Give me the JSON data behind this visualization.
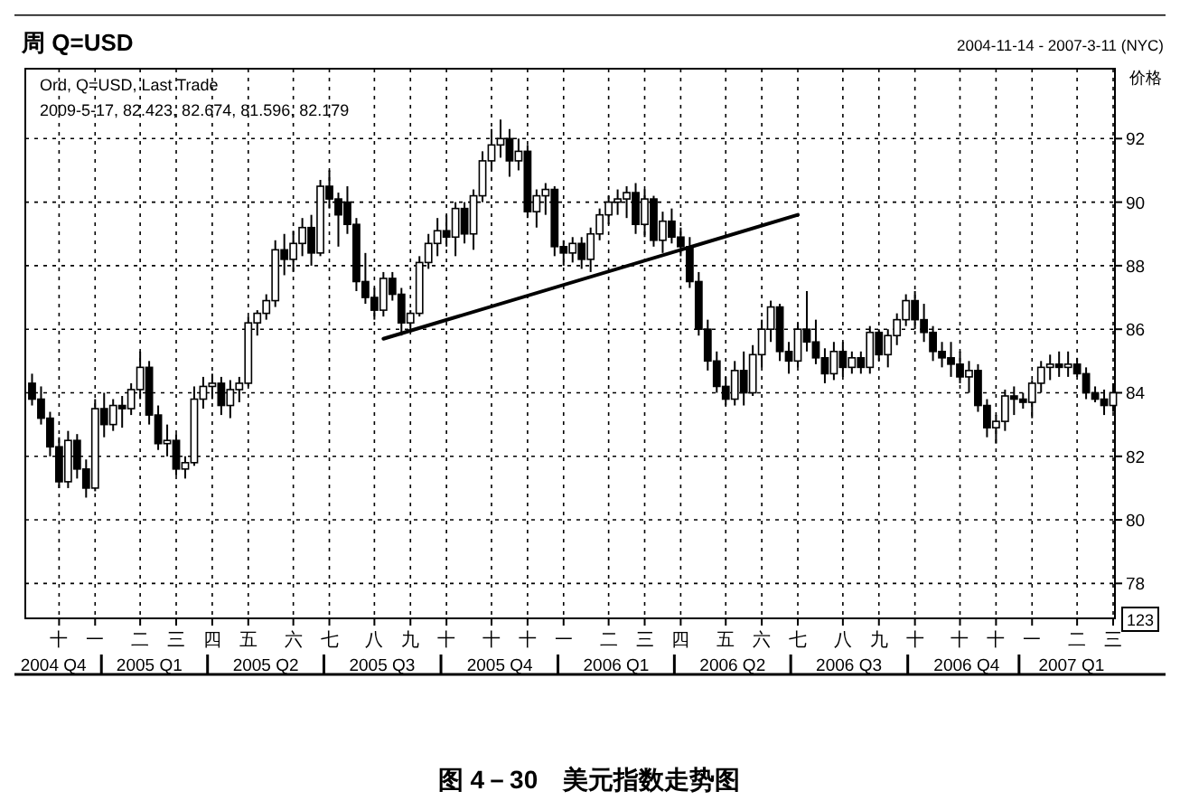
{
  "chart_data": {
    "type": "candlestick",
    "title": "周 Q=USD",
    "subtitle": "2004-11-14 - 2007-3-11 (NYC)",
    "ylabel": "价格",
    "annotations": [
      "Ord, Q=USD, Last Trade",
      "2009-5-17, 82.423, 82.674, 81.596, 82.179",
      "123",
      "图 4－30　美元指数走势图"
    ],
    "color": "#000000",
    "grid": true,
    "categories": [
      null,
      null,
      null,
      "十",
      null,
      null,
      null,
      "一",
      null,
      null,
      null,
      null,
      "二",
      null,
      null,
      null,
      "三",
      null,
      null,
      null,
      "四",
      null,
      null,
      null,
      "五",
      null,
      null,
      null,
      null,
      "六",
      null,
      null,
      null,
      "七",
      null,
      null,
      null,
      null,
      "八",
      null,
      null,
      null,
      "九",
      null,
      null,
      null,
      "十",
      null,
      null,
      null,
      null,
      "十",
      null,
      null,
      null,
      "十",
      null,
      null,
      null,
      "一",
      null,
      null,
      null,
      null,
      "二",
      null,
      null,
      null,
      "三",
      null,
      null,
      null,
      "四",
      null,
      null,
      null,
      null,
      "五",
      null,
      null,
      null,
      "六",
      null,
      null,
      null,
      "七",
      null,
      null,
      null,
      null,
      "八",
      null,
      null,
      null,
      "九",
      null,
      null,
      null,
      "十",
      null,
      null,
      null,
      null,
      "十",
      null,
      null,
      null,
      "十",
      null,
      null,
      null,
      "一",
      null,
      null,
      null,
      null,
      "二",
      null,
      null,
      null,
      "三"
    ],
    "x2lim": [
      "2004-11-09",
      "2007-03-11"
    ],
    "x2ticks": [
      {
        "value": "2004-12-01",
        "label": "2004 Q4"
      },
      {
        "value": "2005-02-14",
        "label": "2005 Q1"
      },
      {
        "value": "2005-05-16",
        "label": "2005 Q2"
      },
      {
        "value": "2005-08-15",
        "label": "2005 Q3"
      },
      {
        "value": "2005-11-15",
        "label": "2005 Q4"
      },
      {
        "value": "2006-02-14",
        "label": "2006 Q1"
      },
      {
        "value": "2006-05-16",
        "label": "2006 Q2"
      },
      {
        "value": "2006-08-15",
        "label": "2006 Q3"
      },
      {
        "value": "2006-11-15",
        "label": "2006 Q4"
      },
      {
        "value": "2007-02-05",
        "label": "2007 Q1"
      }
    ],
    "ylim": [
      76.9,
      94.2
    ],
    "yticks": [
      78,
      80,
      82,
      84,
      86,
      88,
      90,
      92
    ],
    "ohlc": [
      [
        84.3,
        84.6,
        83.6,
        83.8
      ],
      [
        83.8,
        84.2,
        83.0,
        83.2
      ],
      [
        83.2,
        83.4,
        82.0,
        82.3
      ],
      [
        82.3,
        82.6,
        81.0,
        81.2
      ],
      [
        81.2,
        82.8,
        81.0,
        82.5
      ],
      [
        82.5,
        82.7,
        81.3,
        81.6
      ],
      [
        81.6,
        81.9,
        80.7,
        81.0
      ],
      [
        81.0,
        83.8,
        80.9,
        83.5
      ],
      [
        83.5,
        84.0,
        82.6,
        83.0
      ],
      [
        83.0,
        83.8,
        82.8,
        83.6
      ],
      [
        83.6,
        83.9,
        82.9,
        83.5
      ],
      [
        83.5,
        84.3,
        83.3,
        84.1
      ],
      [
        84.1,
        85.3,
        83.8,
        84.8
      ],
      [
        84.8,
        85.0,
        83.0,
        83.3
      ],
      [
        83.3,
        83.6,
        82.2,
        82.4
      ],
      [
        82.4,
        83.0,
        82.0,
        82.5
      ],
      [
        82.5,
        82.7,
        81.4,
        81.6
      ],
      [
        81.6,
        82.0,
        81.3,
        81.8
      ],
      [
        81.8,
        84.2,
        81.7,
        83.8
      ],
      [
        83.8,
        84.5,
        83.5,
        84.2
      ],
      [
        84.2,
        84.6,
        83.8,
        84.3
      ],
      [
        84.3,
        84.5,
        83.3,
        83.6
      ],
      [
        83.6,
        84.4,
        83.2,
        84.1
      ],
      [
        84.1,
        84.5,
        83.7,
        84.3
      ],
      [
        84.3,
        86.4,
        84.2,
        86.2
      ],
      [
        86.2,
        86.6,
        85.8,
        86.5
      ],
      [
        86.5,
        87.1,
        86.3,
        86.9
      ],
      [
        86.9,
        88.8,
        86.7,
        88.5
      ],
      [
        88.5,
        89.0,
        87.7,
        88.2
      ],
      [
        88.2,
        89.1,
        87.8,
        88.7
      ],
      [
        88.7,
        89.5,
        88.3,
        89.2
      ],
      [
        89.2,
        89.6,
        88.0,
        88.4
      ],
      [
        88.4,
        90.7,
        88.3,
        90.5
      ],
      [
        90.5,
        91.0,
        89.8,
        90.1
      ],
      [
        90.1,
        90.3,
        88.6,
        89.6
      ],
      [
        90.0,
        90.5,
        89.0,
        89.3
      ],
      [
        89.3,
        89.5,
        87.2,
        87.5
      ],
      [
        87.5,
        88.4,
        86.8,
        87.0
      ],
      [
        87.0,
        87.3,
        86.3,
        86.6
      ],
      [
        86.6,
        87.8,
        86.4,
        87.6
      ],
      [
        87.6,
        87.8,
        86.9,
        87.1
      ],
      [
        87.1,
        87.3,
        85.8,
        86.2
      ],
      [
        86.2,
        86.6,
        85.9,
        86.5
      ],
      [
        86.5,
        88.3,
        86.4,
        88.1
      ],
      [
        88.1,
        89.0,
        87.9,
        88.7
      ],
      [
        88.7,
        89.5,
        88.3,
        89.1
      ],
      [
        89.1,
        89.6,
        88.6,
        88.9
      ],
      [
        88.9,
        90.0,
        88.3,
        89.8
      ],
      [
        89.8,
        90.0,
        88.7,
        89.0
      ],
      [
        89.0,
        90.4,
        88.5,
        90.2
      ],
      [
        90.2,
        91.6,
        90.0,
        91.3
      ],
      [
        91.3,
        92.3,
        91.0,
        91.8
      ],
      [
        91.8,
        92.6,
        91.4,
        92.0
      ],
      [
        92.0,
        92.3,
        90.8,
        91.3
      ],
      [
        91.3,
        92.0,
        91.0,
        91.6
      ],
      [
        91.6,
        91.8,
        89.5,
        89.7
      ],
      [
        89.7,
        90.4,
        89.2,
        90.2
      ],
      [
        90.2,
        90.6,
        89.6,
        90.4
      ],
      [
        90.4,
        90.5,
        88.3,
        88.6
      ],
      [
        88.6,
        88.8,
        88.0,
        88.4
      ],
      [
        88.4,
        88.9,
        88.1,
        88.7
      ],
      [
        88.7,
        88.9,
        87.9,
        88.2
      ],
      [
        88.2,
        89.2,
        87.8,
        89.0
      ],
      [
        89.0,
        89.8,
        88.8,
        89.6
      ],
      [
        89.6,
        90.2,
        89.3,
        90.0
      ],
      [
        90.0,
        90.4,
        89.6,
        90.1
      ],
      [
        90.1,
        90.5,
        89.5,
        90.3
      ],
      [
        90.3,
        90.6,
        89.0,
        89.3
      ],
      [
        89.3,
        90.4,
        88.9,
        90.1
      ],
      [
        90.1,
        90.2,
        88.6,
        88.8
      ],
      [
        88.8,
        89.7,
        88.4,
        89.4
      ],
      [
        89.4,
        89.8,
        88.7,
        88.9
      ],
      [
        88.9,
        89.2,
        88.3,
        88.6
      ],
      [
        88.6,
        88.9,
        87.3,
        87.5
      ],
      [
        87.5,
        87.8,
        85.8,
        86.0
      ],
      [
        86.0,
        86.3,
        84.7,
        85.0
      ],
      [
        85.0,
        85.3,
        84.0,
        84.2
      ],
      [
        84.2,
        84.5,
        83.6,
        83.8
      ],
      [
        83.8,
        85.0,
        83.6,
        84.7
      ],
      [
        84.7,
        85.3,
        83.6,
        84.0
      ],
      [
        84.0,
        85.5,
        83.9,
        85.2
      ],
      [
        85.2,
        86.3,
        84.8,
        86.0
      ],
      [
        86.0,
        86.9,
        85.6,
        86.7
      ],
      [
        86.7,
        86.8,
        85.0,
        85.3
      ],
      [
        85.3,
        85.6,
        84.6,
        85.0
      ],
      [
        85.0,
        86.2,
        84.8,
        86.0
      ],
      [
        86.0,
        87.2,
        85.3,
        85.6
      ],
      [
        85.6,
        86.3,
        84.9,
        85.1
      ],
      [
        85.1,
        85.4,
        84.3,
        84.6
      ],
      [
        84.6,
        85.6,
        84.4,
        85.3
      ],
      [
        85.3,
        85.6,
        84.5,
        84.8
      ],
      [
        84.8,
        85.3,
        84.6,
        85.1
      ],
      [
        85.1,
        85.3,
        84.6,
        84.8
      ],
      [
        84.8,
        86.1,
        84.6,
        85.9
      ],
      [
        85.9,
        86.0,
        85.0,
        85.2
      ],
      [
        85.2,
        86.0,
        84.8,
        85.8
      ],
      [
        85.8,
        86.5,
        85.5,
        86.3
      ],
      [
        86.3,
        87.1,
        86.1,
        86.9
      ],
      [
        86.9,
        87.2,
        86.0,
        86.3
      ],
      [
        86.3,
        86.8,
        85.6,
        85.9
      ],
      [
        85.9,
        86.1,
        85.0,
        85.3
      ],
      [
        85.3,
        85.6,
        84.8,
        85.1
      ],
      [
        85.1,
        85.6,
        84.5,
        84.9
      ],
      [
        84.9,
        85.3,
        84.3,
        84.5
      ],
      [
        84.5,
        85.0,
        84.0,
        84.7
      ],
      [
        84.7,
        84.9,
        83.4,
        83.6
      ],
      [
        83.6,
        83.8,
        82.6,
        82.9
      ],
      [
        82.9,
        83.3,
        82.4,
        83.1
      ],
      [
        83.1,
        84.1,
        82.8,
        83.9
      ],
      [
        83.9,
        84.2,
        83.3,
        83.8
      ],
      [
        83.8,
        84.0,
        83.5,
        83.7
      ],
      [
        83.7,
        84.4,
        83.2,
        84.3
      ],
      [
        84.3,
        85.0,
        84.0,
        84.8
      ],
      [
        84.8,
        85.2,
        84.4,
        84.9
      ],
      [
        84.9,
        85.3,
        84.5,
        84.8
      ],
      [
        84.8,
        85.3,
        84.5,
        84.9
      ],
      [
        84.9,
        85.1,
        84.5,
        84.6
      ],
      [
        84.6,
        84.8,
        83.8,
        84.0
      ],
      [
        84.0,
        84.2,
        83.7,
        83.8
      ],
      [
        83.8,
        84.1,
        83.3,
        83.6
      ],
      [
        83.6,
        84.3,
        83.4,
        84.0
      ]
    ],
    "series": [
      {
        "type": "line",
        "values": [
          null,
          null,
          null,
          null,
          null,
          null,
          null,
          null,
          null,
          null,
          null,
          null,
          null,
          null,
          null,
          null,
          null,
          null,
          null,
          null,
          null,
          null,
          null,
          null,
          null,
          null,
          null,
          null,
          null,
          null,
          null,
          null,
          null,
          null,
          null,
          null,
          null,
          null,
          null,
          85.7,
          null,
          null,
          null,
          null,
          null,
          null,
          null,
          null,
          null,
          null,
          null,
          null,
          null,
          null,
          null,
          null,
          null,
          null,
          null,
          null,
          null,
          null,
          null,
          null,
          null,
          null,
          null,
          null,
          null,
          null,
          null,
          null,
          null,
          null,
          null,
          null,
          null,
          null,
          null,
          null,
          null,
          null,
          null,
          null,
          null,
          89.6,
          null,
          null,
          null,
          null,
          null,
          null,
          null,
          null,
          null,
          null,
          null,
          null,
          null,
          null,
          null,
          null,
          null,
          null,
          null,
          null,
          null,
          null,
          null,
          null,
          null,
          null,
          null,
          null,
          null,
          null,
          null,
          null,
          null,
          null,
          null
        ],
        "color": "#000000"
      }
    ]
  }
}
